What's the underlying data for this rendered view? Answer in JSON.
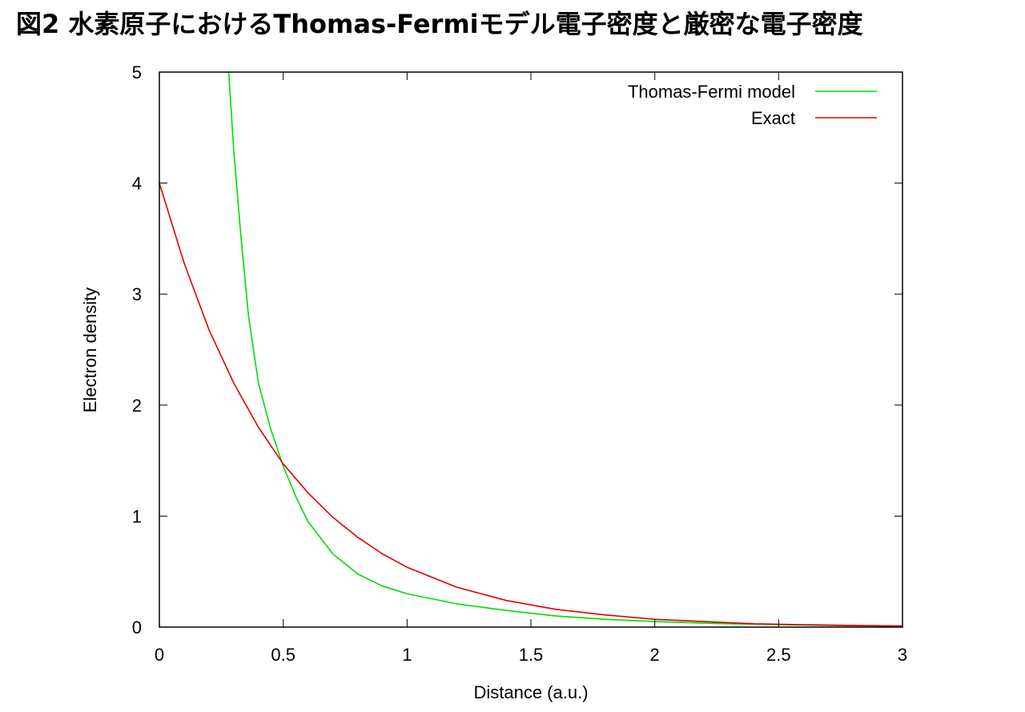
{
  "title": "図2 水素原子におけるThomas-Fermiモデル電子密度と厳密な電子密度",
  "chart_data": {
    "type": "line",
    "xlabel": "Distance (a.u.)",
    "ylabel": "Electron density",
    "xlim": [
      0,
      3
    ],
    "ylim": [
      0,
      5
    ],
    "xticks": [
      "0",
      "0.5",
      "1",
      "1.5",
      "2",
      "2.5",
      "3"
    ],
    "yticks": [
      "0",
      "1",
      "2",
      "3",
      "4",
      "5"
    ],
    "grid": false,
    "legend_position": "top-right",
    "series": [
      {
        "name": "Thomas-Fermi model",
        "color": "#00dd00",
        "x": [
          0.28,
          0.3,
          0.33,
          0.36,
          0.4,
          0.45,
          0.5,
          0.55,
          0.6,
          0.7,
          0.8,
          0.9,
          1.0,
          1.2,
          1.4,
          1.6,
          1.8,
          2.0,
          2.2,
          2.4,
          2.6,
          2.8,
          3.0
        ],
        "y": [
          5.0,
          4.3,
          3.5,
          2.8,
          2.2,
          1.78,
          1.45,
          1.18,
          0.95,
          0.66,
          0.48,
          0.37,
          0.3,
          0.21,
          0.15,
          0.1,
          0.07,
          0.05,
          0.035,
          0.025,
          0.018,
          0.012,
          0.008
        ]
      },
      {
        "name": "Exact",
        "color": "#dd0000",
        "x": [
          0,
          0.1,
          0.2,
          0.3,
          0.4,
          0.5,
          0.6,
          0.7,
          0.8,
          0.9,
          1.0,
          1.2,
          1.4,
          1.6,
          1.8,
          2.0,
          2.2,
          2.4,
          2.6,
          2.8,
          3.0
        ],
        "y": [
          4.0,
          3.28,
          2.68,
          2.2,
          1.8,
          1.47,
          1.21,
          0.99,
          0.81,
          0.66,
          0.54,
          0.36,
          0.24,
          0.16,
          0.11,
          0.07,
          0.05,
          0.03,
          0.022,
          0.015,
          0.01
        ]
      }
    ]
  }
}
